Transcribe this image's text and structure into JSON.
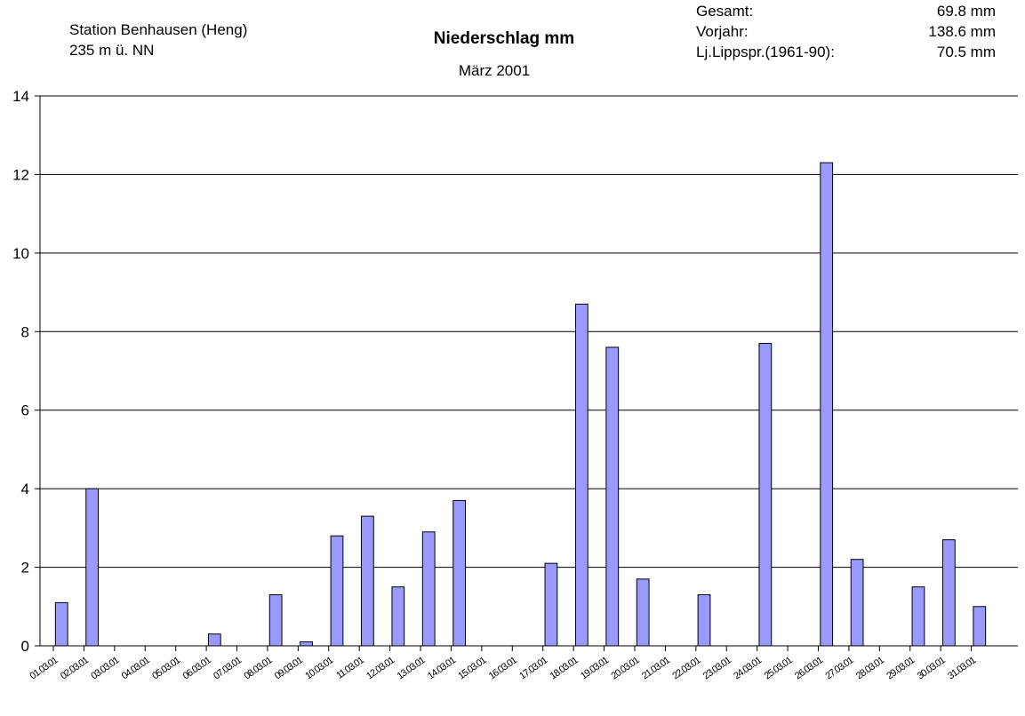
{
  "chart_data": {
    "type": "bar",
    "title": "Niederschlag mm",
    "subtitle": "März 2001",
    "station": [
      "Station Benhausen (Heng)",
      "235 m ü. NN"
    ],
    "annotations": [
      {
        "label": "Gesamt:",
        "value": "69.8 mm"
      },
      {
        "label": "Vorjahr:",
        "value": "138.6 mm"
      },
      {
        "label": "Lj.Lippspr.(1961-90):",
        "value": "70.5 mm"
      }
    ],
    "categories": [
      "01.03.01",
      "02.03.01",
      "03.03.01",
      "04.03.01",
      "05.03.01",
      "06.03.01",
      "07.03.01",
      "08.03.01",
      "09.03.01",
      "10.03.01",
      "11.03.01",
      "12.03.01",
      "13.03.01",
      "14.03.01",
      "15.03.01",
      "16.03.01",
      "17.03.01",
      "18.03.01",
      "19.03.01",
      "20.03.01",
      "21.03.01",
      "22.03.01",
      "23.03.01",
      "24.03.01",
      "25.03.01",
      "26.03.01",
      "27.03.01",
      "28.03.01",
      "29.03.01",
      "30.03.01",
      "31.03.01"
    ],
    "values": [
      1.1,
      4.0,
      0,
      0,
      0,
      0.3,
      0,
      1.3,
      0.1,
      2.8,
      3.3,
      1.5,
      2.9,
      3.7,
      0,
      0,
      2.1,
      8.7,
      7.6,
      1.7,
      0,
      1.3,
      0,
      7.7,
      0,
      12.3,
      2.2,
      0,
      1.5,
      2.7,
      1.0
    ],
    "color": "#9999ff",
    "ylim": [
      0,
      14
    ],
    "yticks": [
      0,
      2,
      4,
      6,
      8,
      10,
      12,
      14
    ],
    "grid": true
  }
}
